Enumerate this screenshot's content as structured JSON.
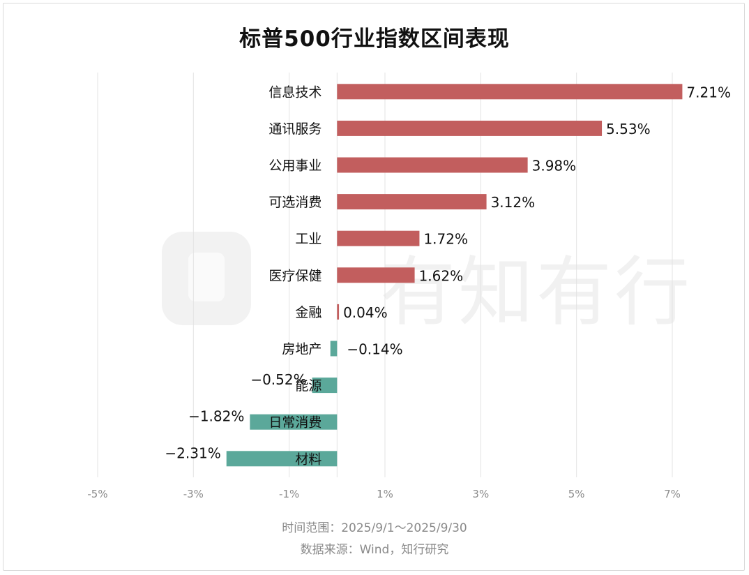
{
  "title": "标普500行业指数区间表现",
  "watermark": "有知有行",
  "footer": {
    "period": "时间范围：2025/9/1～2025/9/30",
    "source": "数据来源：Wind，知行研究"
  },
  "colors": {
    "positive": "#c25e5e",
    "negative": "#5ba89a",
    "grid": "#e3e3e3",
    "tick_text": "#8a8a8a"
  },
  "chart_data": {
    "type": "bar",
    "orientation": "horizontal",
    "title": "标普500行业指数区间表现",
    "xlim": [
      -5,
      7
    ],
    "x_ticks": [
      "-5%",
      "-3%",
      "-1%",
      "1%",
      "3%",
      "5%",
      "7%"
    ],
    "grid": "vertical",
    "categories": [
      "信息技术",
      "通讯服务",
      "公用事业",
      "可选消费",
      "工业",
      "医疗保健",
      "金融",
      "房地产",
      "能源",
      "日常消费",
      "材料"
    ],
    "values": [
      7.21,
      5.53,
      3.98,
      3.12,
      1.72,
      1.62,
      0.04,
      -0.14,
      -0.52,
      -1.82,
      -2.31
    ],
    "labels": [
      "7.21%",
      "5.53%",
      "3.98%",
      "3.12%",
      "1.72%",
      "1.62%",
      "0.04%",
      "−0.14%",
      "−0.52%",
      "−1.82%",
      "−2.31%"
    ]
  }
}
